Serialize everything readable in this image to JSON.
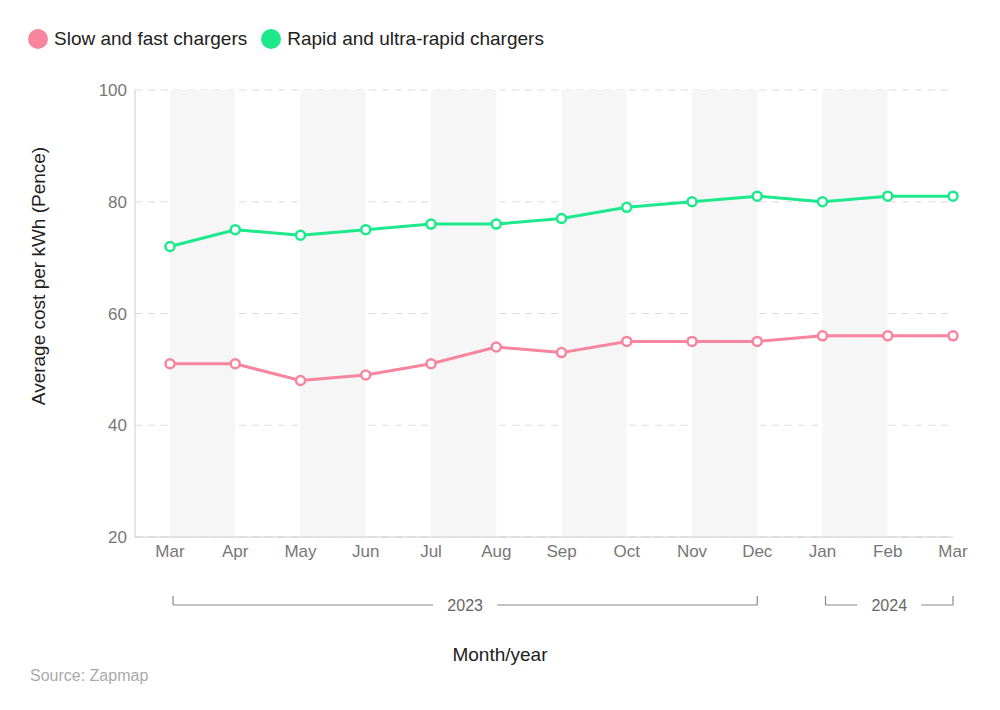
{
  "chart_data": {
    "type": "line",
    "source": "Source: Zapmap",
    "x_label": "Month/year",
    "y_label": "Average cost per kWh (Pence)",
    "categories": [
      "Mar",
      "Apr",
      "May",
      "Jun",
      "Jul",
      "Aug",
      "Sep",
      "Oct",
      "Nov",
      "Dec",
      "Jan",
      "Feb",
      "Mar"
    ],
    "annotations": [
      {
        "text": "2023",
        "start": 0,
        "end": 9
      },
      {
        "text": "2024",
        "start": 10,
        "end": 12
      }
    ],
    "series": [
      {
        "name": "Slow and fast chargers",
        "color": "#f7859e",
        "values": [
          51,
          51,
          48,
          49,
          51,
          54,
          53,
          55,
          55,
          55,
          56,
          56,
          56
        ]
      },
      {
        "name": "Rapid and ultra-rapid chargers",
        "color": "#1ce98c",
        "values": [
          72,
          75,
          74,
          75,
          76,
          76,
          77,
          79,
          80,
          81,
          80,
          81,
          81
        ]
      }
    ],
    "ylim": [
      20,
      100
    ],
    "yticks": [
      20,
      40,
      60,
      80,
      100
    ],
    "grid": true,
    "legend": "top-left",
    "marker": "circle"
  }
}
